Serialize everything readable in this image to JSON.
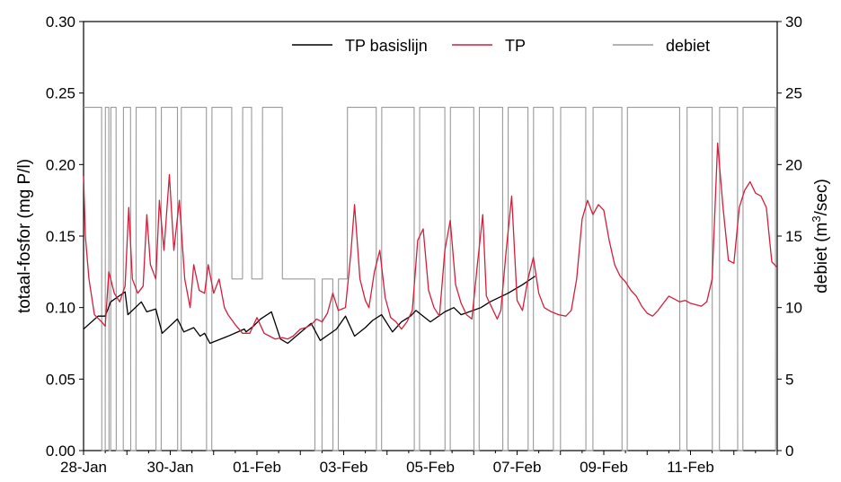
{
  "chart_data": {
    "type": "line",
    "title": "",
    "xlabel": "",
    "ylabel_left": "totaal-fosfor (mg P/l)",
    "ylabel_right_prefix": "debiet (m",
    "ylabel_right_sup": "3",
    "ylabel_right_suffix": "/sec)",
    "x_range_days": [
      "28-Jan",
      "13-Feb"
    ],
    "x_ticks": [
      "28-Jan",
      "30-Jan",
      "01-Feb",
      "03-Feb",
      "05-Feb",
      "07-Feb",
      "09-Feb",
      "11-Feb"
    ],
    "ylim_left": [
      0,
      0.3
    ],
    "yticks_left": [
      "0.00",
      "0.05",
      "0.10",
      "0.15",
      "0.20",
      "0.25",
      "0.30"
    ],
    "ylim_right": [
      0,
      30
    ],
    "yticks_right": [
      "0",
      "5",
      "10",
      "15",
      "20",
      "25",
      "30"
    ],
    "legend_position": "top",
    "grid": false,
    "series": [
      {
        "name": "TP basislijn",
        "axis": "left",
        "color": "#000000",
        "points": [
          [
            0.0,
            0.085
          ],
          [
            0.8,
            0.094
          ],
          [
            1.2,
            0.094
          ],
          [
            1.5,
            0.104
          ],
          [
            2.3,
            0.111
          ],
          [
            2.45,
            0.095
          ],
          [
            3.2,
            0.104
          ],
          [
            3.5,
            0.097
          ],
          [
            4.0,
            0.099
          ],
          [
            4.35,
            0.082
          ],
          [
            5.2,
            0.092
          ],
          [
            5.55,
            0.083
          ],
          [
            6.1,
            0.086
          ],
          [
            6.45,
            0.08
          ],
          [
            6.7,
            0.082
          ],
          [
            7.0,
            0.075
          ],
          [
            8.0,
            0.08
          ],
          [
            8.9,
            0.085
          ],
          [
            9.0,
            0.083
          ],
          [
            9.4,
            0.087
          ],
          [
            9.8,
            0.092
          ],
          [
            10.4,
            0.097
          ],
          [
            10.9,
            0.078
          ],
          [
            11.3,
            0.075
          ],
          [
            12.6,
            0.089
          ],
          [
            13.1,
            0.077
          ],
          [
            14.0,
            0.085
          ],
          [
            14.5,
            0.094
          ],
          [
            15.0,
            0.08
          ],
          [
            15.6,
            0.086
          ],
          [
            16.0,
            0.091
          ],
          [
            16.5,
            0.095
          ],
          [
            17.1,
            0.083
          ],
          [
            17.6,
            0.09
          ],
          [
            18.1,
            0.094
          ],
          [
            18.4,
            0.098
          ],
          [
            19.2,
            0.09
          ],
          [
            20.0,
            0.097
          ],
          [
            20.5,
            0.1
          ],
          [
            20.9,
            0.095
          ],
          [
            22.0,
            0.1
          ],
          [
            22.5,
            0.104
          ],
          [
            23.5,
            0.11
          ],
          [
            24.3,
            0.116
          ],
          [
            25.0,
            0.122
          ]
        ]
      },
      {
        "name": "TP",
        "axis": "left",
        "color": "#d31f3c",
        "points": [
          [
            0.0,
            0.192
          ],
          [
            0.1,
            0.15
          ],
          [
            0.3,
            0.12
          ],
          [
            0.6,
            0.095
          ],
          [
            1.0,
            0.09
          ],
          [
            1.2,
            0.087
          ],
          [
            1.4,
            0.125
          ],
          [
            1.7,
            0.11
          ],
          [
            2.0,
            0.104
          ],
          [
            2.3,
            0.115
          ],
          [
            2.5,
            0.17
          ],
          [
            2.7,
            0.12
          ],
          [
            3.0,
            0.11
          ],
          [
            3.3,
            0.115
          ],
          [
            3.5,
            0.165
          ],
          [
            3.7,
            0.13
          ],
          [
            4.0,
            0.12
          ],
          [
            4.2,
            0.175
          ],
          [
            4.45,
            0.14
          ],
          [
            4.75,
            0.193
          ],
          [
            5.0,
            0.14
          ],
          [
            5.3,
            0.175
          ],
          [
            5.6,
            0.12
          ],
          [
            5.9,
            0.1
          ],
          [
            6.1,
            0.13
          ],
          [
            6.4,
            0.112
          ],
          [
            6.7,
            0.11
          ],
          [
            6.9,
            0.13
          ],
          [
            7.2,
            0.11
          ],
          [
            7.5,
            0.12
          ],
          [
            7.8,
            0.1
          ],
          [
            8.0,
            0.095
          ],
          [
            8.4,
            0.088
          ],
          [
            8.8,
            0.082
          ],
          [
            9.2,
            0.082
          ],
          [
            9.6,
            0.093
          ],
          [
            10.0,
            0.082
          ],
          [
            10.3,
            0.08
          ],
          [
            10.6,
            0.078
          ],
          [
            11.0,
            0.079
          ],
          [
            11.3,
            0.078
          ],
          [
            11.6,
            0.08
          ],
          [
            12.0,
            0.085
          ],
          [
            12.3,
            0.086
          ],
          [
            12.6,
            0.088
          ],
          [
            12.9,
            0.092
          ],
          [
            13.2,
            0.09
          ],
          [
            13.5,
            0.096
          ],
          [
            13.8,
            0.11
          ],
          [
            14.1,
            0.098
          ],
          [
            14.5,
            0.1
          ],
          [
            14.8,
            0.138
          ],
          [
            15.0,
            0.172
          ],
          [
            15.3,
            0.12
          ],
          [
            15.6,
            0.105
          ],
          [
            15.8,
            0.1
          ],
          [
            16.1,
            0.125
          ],
          [
            16.4,
            0.14
          ],
          [
            16.7,
            0.107
          ],
          [
            17.0,
            0.093
          ],
          [
            17.3,
            0.09
          ],
          [
            17.6,
            0.085
          ],
          [
            17.9,
            0.09
          ],
          [
            18.2,
            0.098
          ],
          [
            18.5,
            0.147
          ],
          [
            18.8,
            0.155
          ],
          [
            19.1,
            0.112
          ],
          [
            19.4,
            0.1
          ],
          [
            19.7,
            0.094
          ],
          [
            20.0,
            0.14
          ],
          [
            20.3,
            0.161
          ],
          [
            20.6,
            0.116
          ],
          [
            20.9,
            0.103
          ],
          [
            21.2,
            0.095
          ],
          [
            21.5,
            0.092
          ],
          [
            21.8,
            0.13
          ],
          [
            22.1,
            0.165
          ],
          [
            22.3,
            0.108
          ],
          [
            22.6,
            0.1
          ],
          [
            22.9,
            0.092
          ],
          [
            23.1,
            0.098
          ],
          [
            23.4,
            0.14
          ],
          [
            23.7,
            0.178
          ],
          [
            24.0,
            0.105
          ],
          [
            24.3,
            0.098
          ],
          [
            24.6,
            0.12
          ],
          [
            24.9,
            0.135
          ],
          [
            25.2,
            0.11
          ],
          [
            25.5,
            0.1
          ],
          [
            25.9,
            0.097
          ],
          [
            26.3,
            0.095
          ],
          [
            26.7,
            0.094
          ],
          [
            27.0,
            0.098
          ],
          [
            27.3,
            0.12
          ],
          [
            27.6,
            0.162
          ],
          [
            27.9,
            0.175
          ],
          [
            28.2,
            0.165
          ],
          [
            28.5,
            0.172
          ],
          [
            28.8,
            0.168
          ],
          [
            29.1,
            0.147
          ],
          [
            29.4,
            0.13
          ],
          [
            29.7,
            0.122
          ],
          [
            30.0,
            0.118
          ],
          [
            30.3,
            0.112
          ],
          [
            30.6,
            0.108
          ],
          [
            30.9,
            0.101
          ],
          [
            31.2,
            0.096
          ],
          [
            31.5,
            0.094
          ],
          [
            31.8,
            0.098
          ],
          [
            32.1,
            0.103
          ],
          [
            32.4,
            0.108
          ],
          [
            32.7,
            0.106
          ],
          [
            33.0,
            0.104
          ],
          [
            33.3,
            0.105
          ],
          [
            33.6,
            0.103
          ],
          [
            33.9,
            0.102
          ],
          [
            34.2,
            0.101
          ],
          [
            34.5,
            0.104
          ],
          [
            34.8,
            0.12
          ],
          [
            35.1,
            0.215
          ],
          [
            35.4,
            0.17
          ],
          [
            35.7,
            0.133
          ],
          [
            36.0,
            0.131
          ],
          [
            36.3,
            0.17
          ],
          [
            36.6,
            0.182
          ],
          [
            36.9,
            0.188
          ],
          [
            37.2,
            0.18
          ],
          [
            37.5,
            0.178
          ],
          [
            37.8,
            0.17
          ],
          [
            38.1,
            0.132
          ],
          [
            38.4,
            0.128
          ]
        ]
      },
      {
        "name": "debiet",
        "axis": "right",
        "color": "#9a9a9a",
        "points": [
          [
            0.0,
            24
          ],
          [
            1.0,
            24
          ],
          [
            1.01,
            0
          ],
          [
            1.2,
            0
          ],
          [
            1.21,
            24
          ],
          [
            1.4,
            24
          ],
          [
            1.41,
            0
          ],
          [
            1.5,
            0
          ],
          [
            1.51,
            24
          ],
          [
            1.8,
            24
          ],
          [
            1.81,
            0
          ],
          [
            2.2,
            0
          ],
          [
            2.21,
            24
          ],
          [
            2.6,
            24
          ],
          [
            2.61,
            0
          ],
          [
            2.9,
            0
          ],
          [
            2.91,
            24
          ],
          [
            4.0,
            24
          ],
          [
            4.01,
            0
          ],
          [
            4.3,
            0
          ],
          [
            4.31,
            24
          ],
          [
            5.2,
            24
          ],
          [
            5.21,
            0
          ],
          [
            5.4,
            0
          ],
          [
            5.41,
            24
          ],
          [
            6.8,
            24
          ],
          [
            6.81,
            0
          ],
          [
            7.1,
            0
          ],
          [
            7.11,
            24
          ],
          [
            8.2,
            24
          ],
          [
            8.21,
            12
          ],
          [
            8.8,
            12
          ],
          [
            8.81,
            24
          ],
          [
            9.3,
            24
          ],
          [
            9.31,
            12
          ],
          [
            9.9,
            12
          ],
          [
            9.91,
            24
          ],
          [
            11.0,
            24
          ],
          [
            11.01,
            12
          ],
          [
            12.8,
            12
          ],
          [
            12.81,
            0
          ],
          [
            13.2,
            0
          ],
          [
            13.21,
            12
          ],
          [
            13.8,
            12
          ],
          [
            13.81,
            0
          ],
          [
            14.1,
            0
          ],
          [
            14.11,
            12
          ],
          [
            14.6,
            12
          ],
          [
            14.61,
            24
          ],
          [
            16.2,
            24
          ],
          [
            16.21,
            0
          ],
          [
            16.5,
            0
          ],
          [
            16.51,
            24
          ],
          [
            18.3,
            24
          ],
          [
            18.31,
            0
          ],
          [
            18.6,
            0
          ],
          [
            18.61,
            24
          ],
          [
            20.0,
            24
          ],
          [
            20.01,
            0
          ],
          [
            20.3,
            0
          ],
          [
            20.31,
            24
          ],
          [
            21.6,
            24
          ],
          [
            21.61,
            0
          ],
          [
            21.9,
            0
          ],
          [
            21.91,
            24
          ],
          [
            23.2,
            24
          ],
          [
            23.21,
            0
          ],
          [
            23.5,
            0
          ],
          [
            23.51,
            24
          ],
          [
            24.6,
            24
          ],
          [
            24.61,
            0
          ],
          [
            24.9,
            0
          ],
          [
            24.91,
            24
          ],
          [
            26.0,
            24
          ],
          [
            26.01,
            0
          ],
          [
            26.4,
            0
          ],
          [
            26.41,
            24
          ],
          [
            27.8,
            24
          ],
          [
            27.81,
            0
          ],
          [
            28.2,
            0
          ],
          [
            28.21,
            24
          ],
          [
            29.8,
            24
          ],
          [
            29.81,
            0
          ],
          [
            30.1,
            0
          ],
          [
            30.11,
            24
          ],
          [
            33.0,
            24
          ],
          [
            33.01,
            0
          ],
          [
            33.4,
            0
          ],
          [
            33.41,
            24
          ],
          [
            34.8,
            24
          ],
          [
            34.81,
            0
          ],
          [
            35.2,
            0
          ],
          [
            35.21,
            24
          ],
          [
            36.2,
            24
          ],
          [
            36.21,
            0
          ],
          [
            36.5,
            0
          ],
          [
            36.51,
            24
          ],
          [
            38.3,
            24
          ],
          [
            38.31,
            0
          ],
          [
            38.4,
            0
          ]
        ]
      }
    ]
  }
}
